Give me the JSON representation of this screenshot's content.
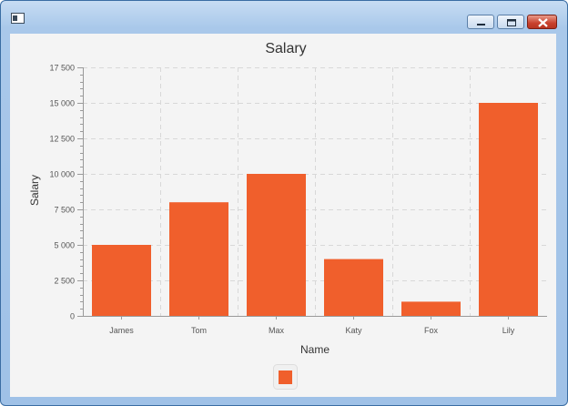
{
  "colors": {
    "bar": "#f05f2c",
    "grid": "#d8d8d8",
    "axis": "#9a9a9a",
    "text": "#333333",
    "tick_text": "#555555"
  },
  "icons": {
    "window": "app-window-icon",
    "minimize": "minimize-icon",
    "maximize": "maximize-icon",
    "close": "close-icon",
    "legend": "legend-swatch"
  },
  "chart_data": {
    "type": "bar",
    "title": "Salary",
    "xlabel": "Name",
    "ylabel": "Salary",
    "categories": [
      "James",
      "Tom",
      "Max",
      "Katy",
      "Fox",
      "Lily"
    ],
    "values": [
      5000,
      8000,
      10000,
      4000,
      1000,
      15000
    ],
    "ylim": [
      0,
      17500
    ],
    "yticks": [
      0,
      2500,
      5000,
      7500,
      10000,
      12500,
      15000,
      17500
    ],
    "ytick_labels": [
      "0",
      "2 500",
      "5 000",
      "7 500",
      "10 000",
      "12 500",
      "15 000",
      "17 500"
    ],
    "grid": true,
    "legend": {
      "placement": "bottom",
      "entries": [
        ""
      ]
    }
  }
}
